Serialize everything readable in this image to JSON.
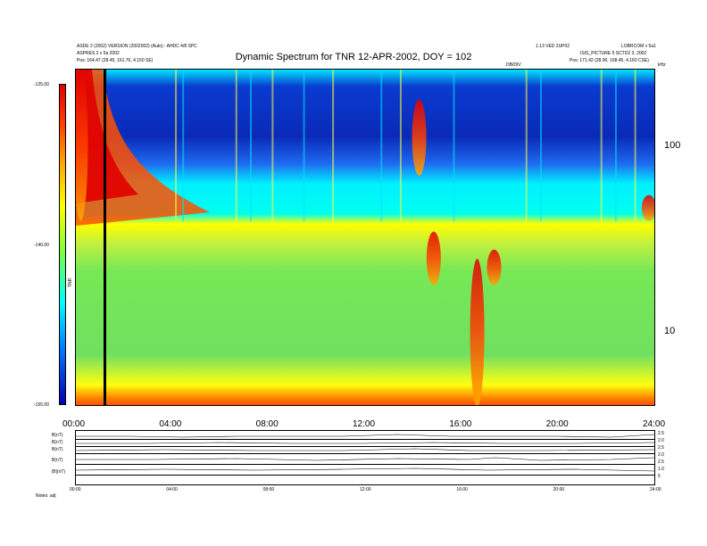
{
  "header": {
    "top_left_1": "ASDE 2 (2002) VERSION (2002002) (Auto) : AHDC 4/8 SPC",
    "top_left_2": "ASPRES 2 v 5a 2002",
    "top_left_3": "Pos:   164.47 (28.45, 161.76, 4.150 SE)",
    "top_right_1": "1.13 VED 2UP02",
    "top_right_2": "LOBRCOM v 5a1",
    "top_right_3": "ISIS_PICTURE 5 SCTD2 3, 2002",
    "top_right_4": "Pos:   171.42 (28.90, 168.45, 4.160 CSE)",
    "dbdiv_label": "DB/DIV",
    "khz_label": "kHz"
  },
  "chart_data": {
    "type": "heatmap",
    "title": "Dynamic Spectrum for TNR 12-APR-2002, DOY = 102",
    "colorbar": {
      "label": "TNR",
      "ticks": [
        "-125.00",
        "-140.00",
        "-155.00"
      ],
      "tick_fractions": [
        0.0,
        0.5,
        1.0
      ],
      "scale_colors": [
        "#e00000",
        "#ffaa00",
        "#ffff00",
        "#80ff40",
        "#00ffff",
        "#0080ff",
        "#0000b0"
      ]
    },
    "x_axis": {
      "ticks": [
        "00:00",
        "04:00",
        "08:00",
        "12:00",
        "16:00",
        "20:00",
        "24:00"
      ],
      "hours": [
        0,
        4,
        8,
        12,
        16,
        20,
        24
      ],
      "range_hours": [
        0,
        24
      ]
    },
    "y_axis_right": {
      "unit": "kHz",
      "scale": "log",
      "ticks": [
        "100",
        "10"
      ],
      "tick_values": [
        100,
        10
      ],
      "range_khz": [
        4,
        260
      ]
    },
    "features": {
      "vertical_marker_hour": 1.2,
      "emission_bursts": [
        {
          "hour": 0.2,
          "khz_low": 40,
          "khz_high": 260
        },
        {
          "hour": 14.2,
          "khz_low": 70,
          "khz_high": 180
        },
        {
          "hour": 14.8,
          "khz_low": 18,
          "khz_high": 35
        },
        {
          "hour": 16.6,
          "khz_low": 4,
          "khz_high": 25
        },
        {
          "hour": 17.3,
          "khz_low": 18,
          "khz_high": 28
        },
        {
          "hour": 23.7,
          "khz_low": 40,
          "khz_high": 55
        }
      ]
    }
  },
  "bottom_panel": {
    "left_labels": [
      "B(nT)",
      "B(nT)",
      "B(nT)",
      "B(nT)",
      "|B|(nT)"
    ],
    "right_labels": [
      "2.5",
      "2.0",
      "2.5",
      "2.0",
      "2.5",
      "1.0",
      "5"
    ],
    "x_ticks": [
      "00:00",
      "04:00",
      "08:00",
      "12:00",
      "16:00",
      "20:00",
      "24:00"
    ],
    "footer_note": "Notes:  adj"
  }
}
